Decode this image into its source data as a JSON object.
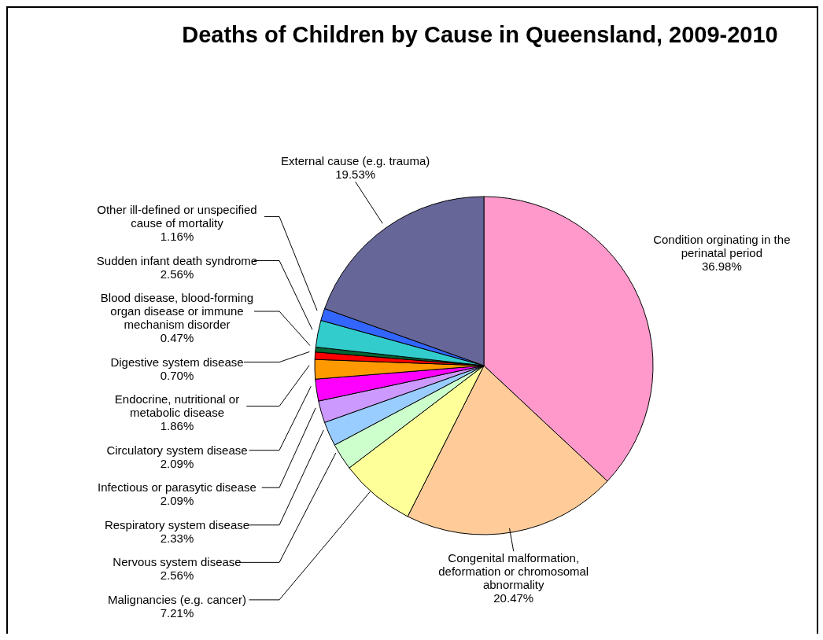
{
  "chart_data": {
    "type": "pie",
    "title": "Deaths of Children by Cause in Queensland, 2009-2010",
    "categories": [
      "Condition orginating in the perinatal period",
      "Congenital malformation, deformation or chromosomal abnormality",
      "Malignancies (e.g. cancer)",
      "Nervous system disease",
      "Respiratory system disease",
      "Infectious or parasytic disease",
      "Circulatory system disease",
      "Endocrine, nutritional or metabolic disease",
      "Digestive system disease",
      "Blood disease, blood-forming organ disease or immune mechanism disorder",
      "Sudden infant death syndrome",
      "Other ill-defined or unspecified cause of mortality",
      "External cause (e.g. trauma)"
    ],
    "values": [
      36.98,
      20.47,
      7.21,
      2.56,
      2.33,
      2.09,
      2.09,
      1.86,
      0.7,
      0.47,
      2.56,
      1.16,
      19.53
    ],
    "value_labels": [
      "36.98%",
      "20.47%",
      "7.21%",
      "2.56%",
      "2.33%",
      "2.09%",
      "2.09%",
      "1.86%",
      "0.70%",
      "0.47%",
      "2.56%",
      "1.16%",
      "19.53%"
    ],
    "colors": [
      "#ff99cc",
      "#ffcc99",
      "#ffff99",
      "#ccffcc",
      "#99ccff",
      "#cc99ff",
      "#ff00ff",
      "#ff9900",
      "#ff0000",
      "#006633",
      "#33cccc",
      "#3366ff",
      "#666699"
    ]
  }
}
